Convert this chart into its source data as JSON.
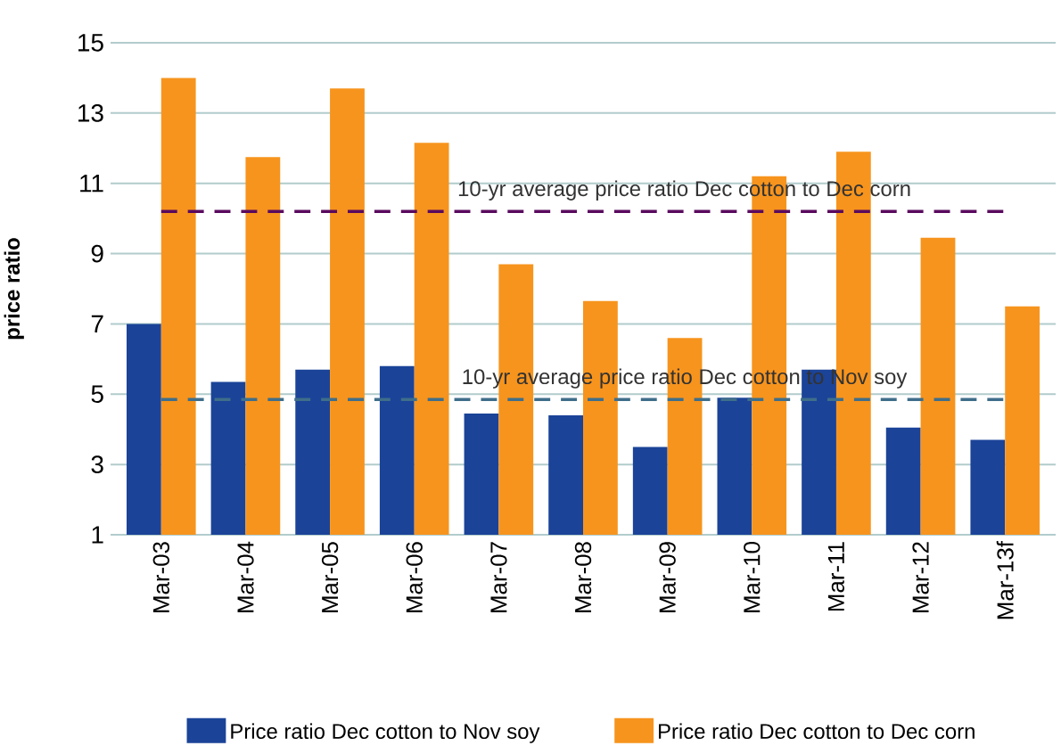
{
  "chart_data": {
    "type": "bar",
    "ylabel": "price ratio",
    "categories": [
      "Mar-03",
      "Mar-04",
      "Mar-05",
      "Mar-06",
      "Mar-07",
      "Mar-08",
      "Mar-09",
      "Mar-10",
      "Mar-11",
      "Mar-12",
      "Mar-13f"
    ],
    "series": [
      {
        "name": "Price ratio Dec cotton to Nov soy",
        "color": "#1b4398",
        "values": [
          7.0,
          5.35,
          5.7,
          5.8,
          4.45,
          4.4,
          3.5,
          4.9,
          5.7,
          4.05,
          3.7
        ]
      },
      {
        "name": "Price ratio Dec cotton to Dec corn",
        "color": "#f7941d",
        "values": [
          14.0,
          11.75,
          13.7,
          12.15,
          8.7,
          7.65,
          6.6,
          11.2,
          11.9,
          9.45,
          7.5
        ]
      }
    ],
    "ylim": [
      1,
      15
    ],
    "yticks": [
      1,
      3,
      5,
      7,
      9,
      11,
      13,
      15
    ],
    "grid": "y",
    "legend": "bottom",
    "ref_lines": [
      {
        "axis": "y",
        "value": 10.2,
        "label": "10-yr average price ratio Dec cotton to Dec corn",
        "color": "#5a0a5e",
        "line_style": "dashed"
      },
      {
        "axis": "y",
        "value": 4.85,
        "label": "10-yr average price ratio Dec cotton to Nov soy",
        "color": "#3f6e8a",
        "line_style": "dashed"
      }
    ]
  }
}
